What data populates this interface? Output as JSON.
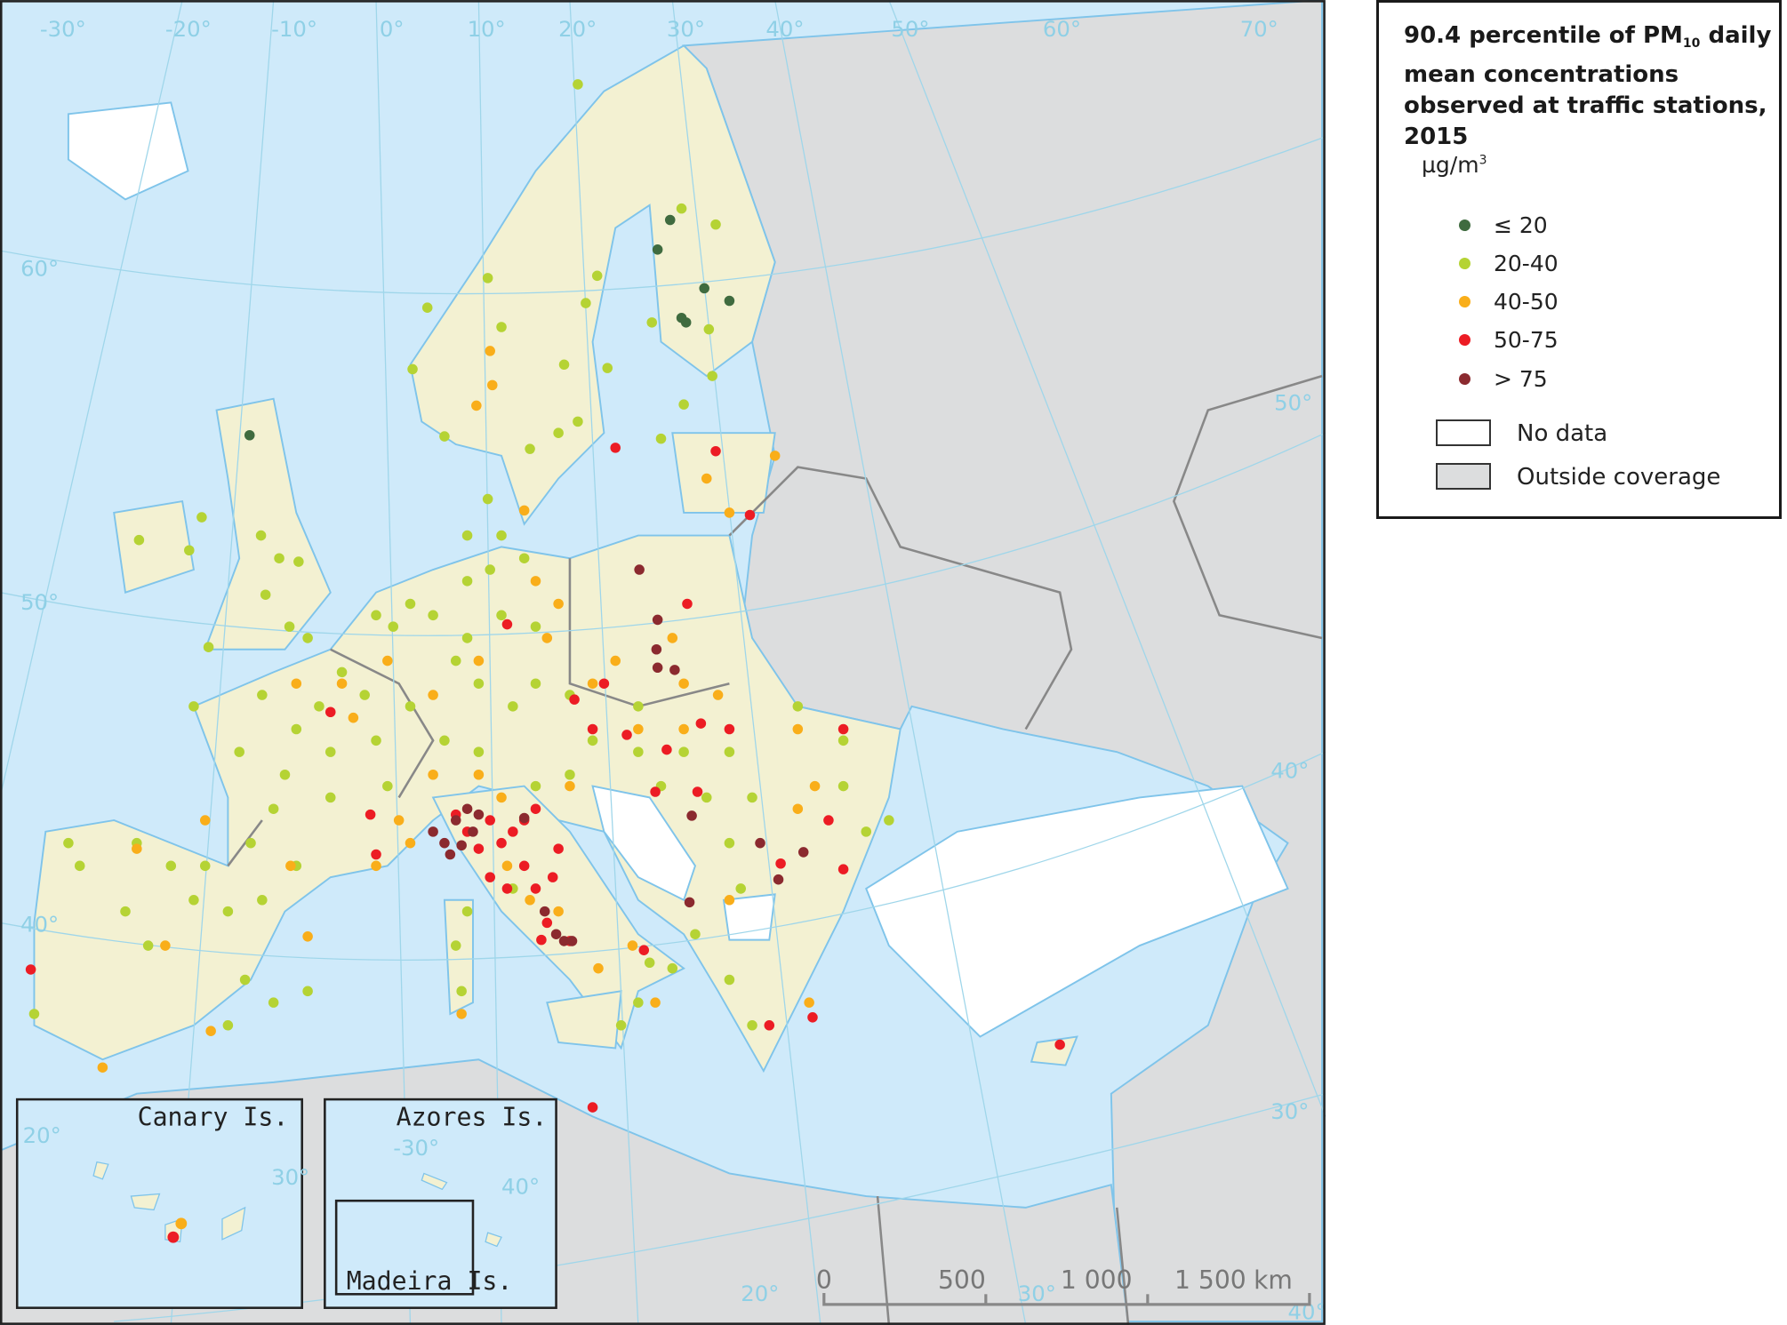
{
  "legend": {
    "title_part1": "90.4 percentile of PM",
    "title_sub": "10",
    "title_part2": " daily mean concentrations observed at traffic stations, 2015",
    "unit": "µg/m",
    "unit_sup": "3",
    "classes": [
      {
        "label": "≤ 20",
        "color": "#3f6b3f"
      },
      {
        "label": "20-40",
        "color": "#b5d334"
      },
      {
        "label": "40-50",
        "color": "#f9ae1a"
      },
      {
        "label": "50-75",
        "color": "#ec1c24"
      },
      {
        "label": "> 75",
        "color": "#8b2a2f"
      }
    ],
    "no_data": {
      "label": "No data",
      "color": "#ffffff"
    },
    "outside": {
      "label": "Outside coverage",
      "color": "#dcddde"
    }
  },
  "map": {
    "sea_color": "#cfeafa",
    "land_color": "#f3f1d2",
    "graticule_labels": [
      "-30°",
      "-20°",
      "-10°",
      "0°",
      "10°",
      "20°",
      "30°",
      "40°",
      "50°",
      "60°",
      "70°",
      "60°",
      "50°",
      "40°",
      "50°",
      "40°",
      "30°",
      "20°",
      "30°",
      "40°"
    ],
    "insets": {
      "canary": "Canary Is.",
      "azores": "Azores Is.",
      "madeira": "Madeira Is.",
      "canary_labels": [
        "20°",
        "30°"
      ],
      "azores_labels": [
        "-30°",
        "40°"
      ]
    },
    "scale": {
      "ticks": [
        "0",
        "500",
        "1 000",
        "1 500"
      ],
      "unit": "km"
    }
  }
}
